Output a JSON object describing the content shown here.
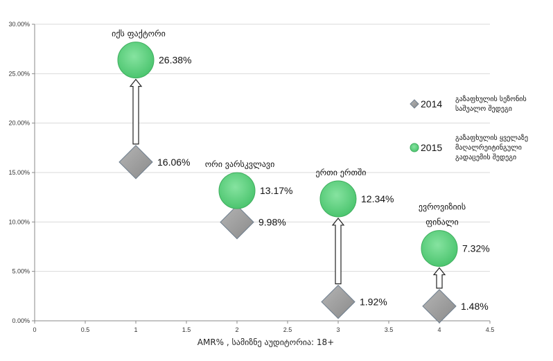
{
  "chart_data": {
    "type": "scatter",
    "xlabel": "AMR% , სამიზნე აუდიტორია:  18+",
    "xlim": [
      0,
      4.5
    ],
    "ylim": [
      0,
      0.3
    ],
    "x_ticks": [
      "0",
      "0.5",
      "1",
      "1.5",
      "2",
      "2.5",
      "3",
      "3.5",
      "4",
      "4.5"
    ],
    "y_ticks": [
      "0.00%",
      "5.00%",
      "10.00%",
      "15.00%",
      "20.00%",
      "25.00%",
      "30.00%"
    ],
    "grid": "horizontal",
    "legend_position": "right",
    "legend": [
      {
        "series": "2014",
        "marker": "diamond",
        "lines": [
          "გაზაფხულის სეზონის",
          "საშუალო შედეგი"
        ]
      },
      {
        "series": "2015",
        "marker": "circle",
        "lines": [
          "გაზაფხულის ყველაზე",
          "მაღალრეიტინგული",
          "გადაცემის შედეგი"
        ]
      }
    ],
    "categories": [
      {
        "x": 1,
        "lines": [
          "იქს ფაქტორი"
        ]
      },
      {
        "x": 2,
        "lines": [
          "ორი ვარსკვლავი"
        ]
      },
      {
        "x": 3,
        "lines": [
          "ერთი ერთში"
        ]
      },
      {
        "x": 4,
        "lines": [
          "ევროვიზიის",
          "ფინალი"
        ]
      }
    ],
    "series": [
      {
        "name": "2014",
        "marker": "diamond",
        "color": "#9E9E9E",
        "points": [
          {
            "x": 1,
            "y": 0.1606,
            "label": "16.06%"
          },
          {
            "x": 2,
            "y": 0.0998,
            "label": "9.98%"
          },
          {
            "x": 3,
            "y": 0.0192,
            "label": "1.92%"
          },
          {
            "x": 4,
            "y": 0.0148,
            "label": "1.48%"
          }
        ]
      },
      {
        "name": "2015",
        "marker": "circle",
        "color": "#5ED27F",
        "points": [
          {
            "x": 1,
            "y": 0.2638,
            "label": "26.38%"
          },
          {
            "x": 2,
            "y": 0.1317,
            "label": "13.17%"
          },
          {
            "x": 3,
            "y": 0.1234,
            "label": "12.34%"
          },
          {
            "x": 4,
            "y": 0.0732,
            "label": "7.32%"
          }
        ]
      }
    ]
  }
}
